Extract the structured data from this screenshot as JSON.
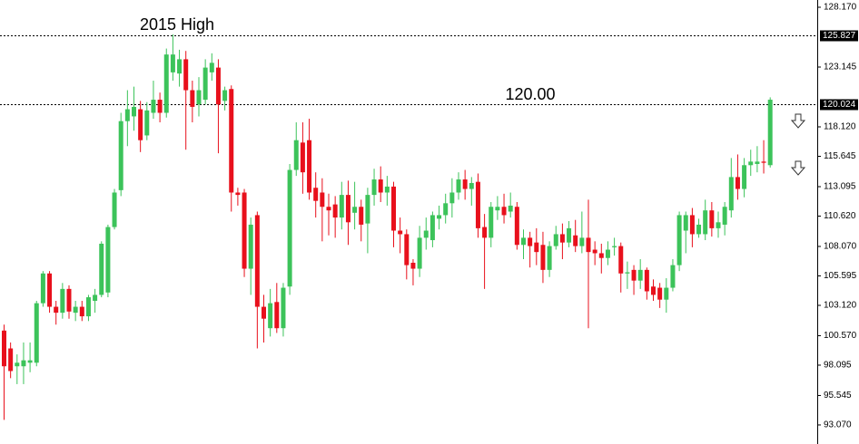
{
  "chart_data": {
    "type": "candlestick",
    "annotations": [
      "2015 High",
      "120.00"
    ],
    "hlines": [
      125.827,
      120.024
    ],
    "up_color": "#3cc35a",
    "down_color": "#e8101c",
    "ylim": [
      92.23,
      128.78
    ],
    "yticks": [
      {
        "value": 128.17,
        "label": "128.170"
      },
      123.145,
      {
        "value": 118.12,
        "label": "118.120"
      },
      115.645,
      113.095,
      {
        "value": 110.62,
        "label": "110.620"
      },
      {
        "value": 108.07,
        "label": "108.070"
      },
      105.595,
      {
        "value": 103.12,
        "label": "103.120"
      },
      {
        "value": 100.57,
        "label": "100.570"
      },
      98.095,
      95.545,
      {
        "value": 93.07,
        "label": "93.070"
      }
    ],
    "open": [
      101,
      99.5,
      98,
      98,
      98.3,
      98.3,
      103.3,
      105.8,
      103,
      102.5,
      104.5,
      102.5,
      103,
      102.2,
      103.5,
      104,
      104.2,
      109.7,
      112.8,
      118.6,
      119,
      119.6,
      117.4,
      119.3,
      120.4,
      119.3,
      122.7,
      122.6,
      123.8,
      121.2,
      120,
      120.4,
      122.7,
      123.1,
      120.3,
      121.3,
      112.6,
      112.6,
      106.2,
      110.7,
      103,
      101.2,
      103.4,
      101.2,
      104.7,
      114.5,
      116.8,
      117,
      113,
      112.6,
      111.4,
      111.6,
      110.5,
      112.4,
      110.9,
      111.4,
      110,
      112.4,
      113.7,
      112.6,
      113.1,
      109.4,
      109.1,
      106.7,
      106.2,
      108.8,
      108.6,
      110.4,
      110.7,
      111.7,
      112.6,
      113.7,
      112.9,
      113.5,
      109.7,
      108.8,
      111.1,
      111.4,
      111,
      111.4,
      108.2,
      108.8,
      108.4,
      108.2,
      106.1,
      108.1,
      109.1,
      108.4,
      109,
      108.1,
      108.8,
      107.8,
      107.5,
      107.1,
      108,
      108.1,
      105.8,
      106.1,
      105.2,
      106.1,
      104.7,
      104.6,
      103.6,
      104.6,
      106.5,
      109.4,
      110.7,
      109.1,
      109.1,
      111.1,
      109.6,
      109.9,
      111.1,
      113.9,
      112.9,
      114.9,
      115,
      115.2,
      114.9
    ],
    "high": [
      101.5,
      100,
      99,
      100,
      100,
      103.5,
      106,
      106,
      103.5,
      105,
      104.8,
      103.5,
      103.5,
      104,
      104.5,
      108.5,
      109.9,
      112.9,
      119.3,
      121.2,
      121.5,
      120.3,
      120.2,
      122,
      121,
      124.7,
      125.9,
      124.6,
      124.5,
      122,
      122.3,
      123.8,
      124.3,
      123.8,
      121.5,
      121.6,
      113,
      112.9,
      110.5,
      111,
      104,
      104.5,
      105,
      105,
      115,
      118.5,
      118.5,
      118.8,
      114.3,
      113.8,
      112.5,
      112.3,
      113.5,
      113.6,
      113.5,
      112,
      113,
      114.6,
      114.8,
      114,
      113.5,
      110.5,
      109.5,
      107,
      109.8,
      110.5,
      111,
      111.5,
      112.5,
      113.8,
      114.3,
      114.5,
      113.9,
      114.2,
      110.8,
      111.8,
      112.3,
      112.5,
      112.6,
      111.8,
      109.5,
      109.3,
      109.6,
      109.3,
      108.5,
      109.8,
      110,
      110.2,
      110.3,
      111,
      112,
      108.5,
      108.3,
      108.5,
      108.8,
      108.4,
      106.8,
      106.5,
      107,
      106.3,
      105.3,
      105,
      105.4,
      107,
      111,
      111,
      111.3,
      110.4,
      112,
      111.8,
      111,
      111.8,
      115.5,
      115.8,
      115.5,
      116.2,
      116.5,
      117,
      120.6
    ],
    "low": [
      93.5,
      97,
      96.5,
      96.5,
      97.5,
      98,
      103,
      102.5,
      101.5,
      102,
      102,
      101.8,
      101.8,
      101.8,
      102.5,
      103.8,
      103.8,
      109.5,
      112.3,
      116.5,
      117.8,
      116,
      117,
      118.8,
      118.5,
      118.9,
      122,
      121.5,
      116.2,
      118.5,
      119,
      120,
      122,
      115.9,
      119.5,
      111,
      111.5,
      105.5,
      104,
      99.5,
      100,
      100.5,
      100.8,
      100.5,
      104,
      114,
      112.5,
      112,
      110.5,
      108.5,
      109,
      108.8,
      109.5,
      108.2,
      109.5,
      108.5,
      107.5,
      111.5,
      111.8,
      111.5,
      108,
      107.5,
      105.3,
      104.8,
      105.5,
      107.8,
      108,
      109.5,
      110,
      110.5,
      112,
      112,
      111.5,
      108.8,
      104.5,
      108,
      110.3,
      110,
      110.5,
      107.8,
      107,
      106.3,
      106.5,
      105,
      105.5,
      107.8,
      107,
      108,
      107.6,
      107.5,
      101.2,
      106.5,
      105.8,
      106.5,
      107.3,
      104.2,
      104.5,
      104,
      104.5,
      103.6,
      103.5,
      102.9,
      102.5,
      104.3,
      106,
      107.5,
      108,
      108.8,
      108.6,
      108.9,
      108.8,
      109,
      110.5,
      112,
      112.2,
      114,
      114.3,
      114.2,
      114.7
    ],
    "close": [
      98,
      97.6,
      98.3,
      98.5,
      98.5,
      103.3,
      105.8,
      103,
      102.5,
      104.5,
      102.6,
      103,
      102.2,
      103.8,
      104,
      108.3,
      109.7,
      112.6,
      118.6,
      119.6,
      119.8,
      117,
      119.5,
      120.4,
      119.3,
      124.2,
      124.2,
      123.8,
      121.2,
      119.8,
      121.2,
      123.1,
      123.5,
      120,
      121.2,
      112.6,
      112.4,
      106.2,
      109.9,
      103,
      102,
      103.3,
      101.2,
      104.6,
      114.5,
      117,
      114.3,
      112.6,
      111.9,
      111.4,
      111.1,
      110.5,
      112.4,
      110.1,
      111.4,
      109.9,
      112.4,
      113.7,
      112.6,
      113.1,
      109.4,
      109.1,
      106.5,
      106.2,
      108.8,
      109.4,
      110.7,
      110.7,
      111.7,
      112.6,
      113.7,
      112.9,
      113.4,
      109.6,
      108.8,
      111.4,
      111.4,
      110.7,
      111.5,
      108.2,
      108.8,
      108.1,
      107.6,
      106.1,
      108.1,
      109.1,
      108.4,
      109.6,
      108.1,
      108.8,
      107.6,
      107.5,
      107.1,
      107.8,
      108.1,
      105.8,
      105.9,
      105.2,
      106.1,
      104.3,
      104,
      103.6,
      104.6,
      106.5,
      110.7,
      110.7,
      109.1,
      109.9,
      111.1,
      109.6,
      110.1,
      111.4,
      113.9,
      112.9,
      114.9,
      115.2,
      115.2,
      115.1,
      120.4
    ]
  }
}
